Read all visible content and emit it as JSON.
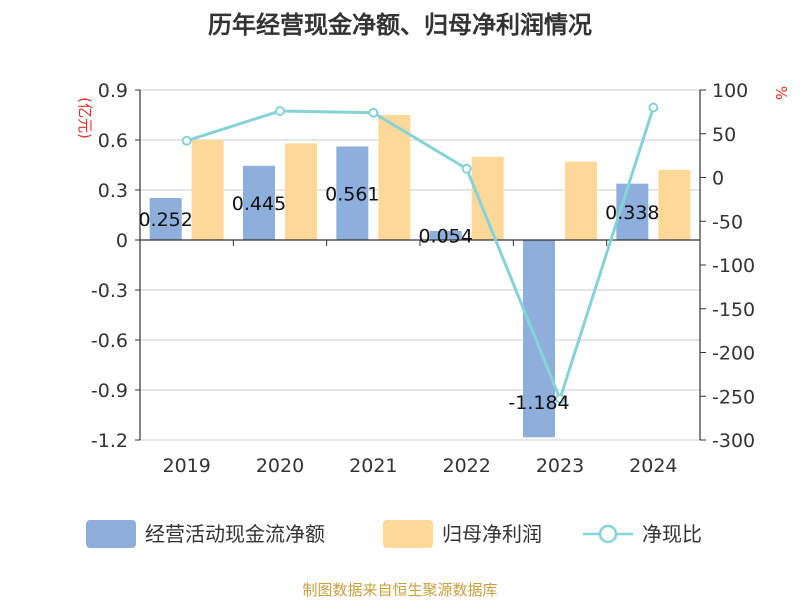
{
  "chart_data": {
    "type": "bar",
    "title": "历年经营现金净额、归母净利润情况",
    "categories": [
      "2019",
      "2020",
      "2021",
      "2022",
      "2023",
      "2024"
    ],
    "y_left": {
      "unit_label": "(亿元)",
      "ylim": [
        -1.2,
        0.9
      ],
      "ticks": [
        "0.9",
        "0.6",
        "0.3",
        "0",
        "-0.3",
        "-0.6",
        "-0.9",
        "-1.2"
      ],
      "tick_values": [
        0.9,
        0.6,
        0.3,
        0,
        -0.3,
        -0.6,
        -0.9,
        -1.2
      ]
    },
    "y_right": {
      "unit_label": "%",
      "ylim": [
        -300,
        100
      ],
      "ticks": [
        "100",
        "50",
        "0",
        "-50",
        "-100",
        "-150",
        "-200",
        "-250",
        "-300"
      ],
      "tick_values": [
        100,
        50,
        0,
        -50,
        -100,
        -150,
        -200,
        -250,
        -300
      ]
    },
    "series": [
      {
        "name": "经营活动现金流净额",
        "type": "bar",
        "axis": "left",
        "color": "#8eaedb",
        "values": [
          0.252,
          0.445,
          0.561,
          0.054,
          -1.184,
          0.338
        ],
        "labels": [
          "0.252",
          "0.445",
          "0.561",
          "0.054",
          "-1.184",
          "0.338"
        ]
      },
      {
        "name": "归母净利润",
        "type": "bar",
        "axis": "left",
        "color": "#fdd898",
        "values": [
          0.6,
          0.58,
          0.75,
          0.5,
          0.47,
          0.42
        ]
      },
      {
        "name": "净现比",
        "type": "line",
        "axis": "right",
        "color": "#86d3d7",
        "values": [
          42,
          76,
          74,
          10,
          -253,
          80
        ]
      }
    ],
    "legend_position": "bottom",
    "grid": true
  },
  "footer": {
    "source": "制图数据来自恒生聚源数据库"
  }
}
